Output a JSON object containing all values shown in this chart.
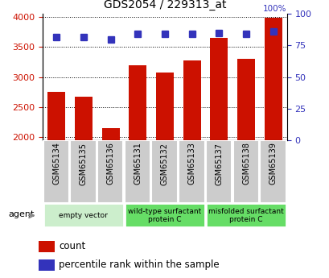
{
  "title": "GDS2054 / 229313_at",
  "samples": [
    "GSM65134",
    "GSM65135",
    "GSM65136",
    "GSM65131",
    "GSM65132",
    "GSM65133",
    "GSM65137",
    "GSM65138",
    "GSM65139"
  ],
  "counts": [
    2760,
    2680,
    2150,
    3200,
    3080,
    3280,
    3650,
    3310,
    3980
  ],
  "percentile_ranks": [
    82,
    82,
    80,
    84,
    84,
    84,
    85,
    84,
    86
  ],
  "bar_color": "#cc1100",
  "dot_color": "#3333bb",
  "ylim_left": [
    1950,
    4050
  ],
  "ylim_right": [
    0,
    100
  ],
  "yticks_left": [
    2000,
    2500,
    3000,
    3500,
    4000
  ],
  "yticks_right": [
    0,
    25,
    50,
    75,
    100
  ],
  "group_color_light": "#cceecc",
  "group_color_dark": "#66dd66",
  "tick_bg_color": "#cccccc",
  "groups": [
    {
      "label": "empty vector",
      "start": 0,
      "end": 2,
      "color": "#cceecc"
    },
    {
      "label": "wild-type surfactant\nprotein C",
      "start": 3,
      "end": 5,
      "color": "#66dd66"
    },
    {
      "label": "misfolded surfactant\nprotein C",
      "start": 6,
      "end": 8,
      "color": "#66dd66"
    }
  ],
  "legend_count_label": "count",
  "legend_pct_label": "percentile rank within the sample",
  "agent_label": "agent"
}
